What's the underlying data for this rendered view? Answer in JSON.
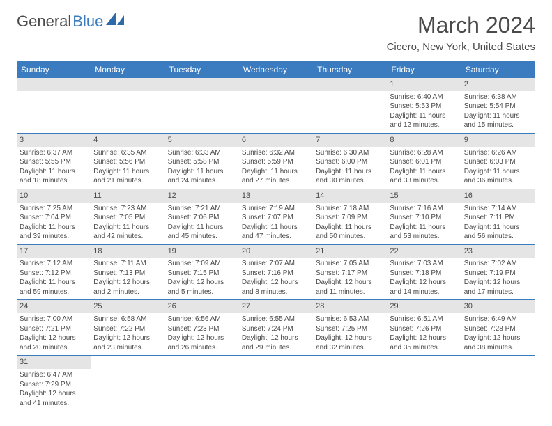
{
  "logo": {
    "text1": "General",
    "text2": "Blue",
    "iconColor": "#2f6aa8"
  },
  "title": "March 2024",
  "location": "Cicero, New York, United States",
  "headerBg": "#3b7bbf",
  "headerText": "#ffffff",
  "dayBarBg": "#e5e5e5",
  "daysOfWeek": [
    "Sunday",
    "Monday",
    "Tuesday",
    "Wednesday",
    "Thursday",
    "Friday",
    "Saturday"
  ],
  "weeks": [
    [
      {
        "n": "",
        "lines": []
      },
      {
        "n": "",
        "lines": []
      },
      {
        "n": "",
        "lines": []
      },
      {
        "n": "",
        "lines": []
      },
      {
        "n": "",
        "lines": []
      },
      {
        "n": "1",
        "lines": [
          "Sunrise: 6:40 AM",
          "Sunset: 5:53 PM",
          "Daylight: 11 hours and 12 minutes."
        ]
      },
      {
        "n": "2",
        "lines": [
          "Sunrise: 6:38 AM",
          "Sunset: 5:54 PM",
          "Daylight: 11 hours and 15 minutes."
        ]
      }
    ],
    [
      {
        "n": "3",
        "lines": [
          "Sunrise: 6:37 AM",
          "Sunset: 5:55 PM",
          "Daylight: 11 hours and 18 minutes."
        ]
      },
      {
        "n": "4",
        "lines": [
          "Sunrise: 6:35 AM",
          "Sunset: 5:56 PM",
          "Daylight: 11 hours and 21 minutes."
        ]
      },
      {
        "n": "5",
        "lines": [
          "Sunrise: 6:33 AM",
          "Sunset: 5:58 PM",
          "Daylight: 11 hours and 24 minutes."
        ]
      },
      {
        "n": "6",
        "lines": [
          "Sunrise: 6:32 AM",
          "Sunset: 5:59 PM",
          "Daylight: 11 hours and 27 minutes."
        ]
      },
      {
        "n": "7",
        "lines": [
          "Sunrise: 6:30 AM",
          "Sunset: 6:00 PM",
          "Daylight: 11 hours and 30 minutes."
        ]
      },
      {
        "n": "8",
        "lines": [
          "Sunrise: 6:28 AM",
          "Sunset: 6:01 PM",
          "Daylight: 11 hours and 33 minutes."
        ]
      },
      {
        "n": "9",
        "lines": [
          "Sunrise: 6:26 AM",
          "Sunset: 6:03 PM",
          "Daylight: 11 hours and 36 minutes."
        ]
      }
    ],
    [
      {
        "n": "10",
        "lines": [
          "Sunrise: 7:25 AM",
          "Sunset: 7:04 PM",
          "Daylight: 11 hours and 39 minutes."
        ]
      },
      {
        "n": "11",
        "lines": [
          "Sunrise: 7:23 AM",
          "Sunset: 7:05 PM",
          "Daylight: 11 hours and 42 minutes."
        ]
      },
      {
        "n": "12",
        "lines": [
          "Sunrise: 7:21 AM",
          "Sunset: 7:06 PM",
          "Daylight: 11 hours and 45 minutes."
        ]
      },
      {
        "n": "13",
        "lines": [
          "Sunrise: 7:19 AM",
          "Sunset: 7:07 PM",
          "Daylight: 11 hours and 47 minutes."
        ]
      },
      {
        "n": "14",
        "lines": [
          "Sunrise: 7:18 AM",
          "Sunset: 7:09 PM",
          "Daylight: 11 hours and 50 minutes."
        ]
      },
      {
        "n": "15",
        "lines": [
          "Sunrise: 7:16 AM",
          "Sunset: 7:10 PM",
          "Daylight: 11 hours and 53 minutes."
        ]
      },
      {
        "n": "16",
        "lines": [
          "Sunrise: 7:14 AM",
          "Sunset: 7:11 PM",
          "Daylight: 11 hours and 56 minutes."
        ]
      }
    ],
    [
      {
        "n": "17",
        "lines": [
          "Sunrise: 7:12 AM",
          "Sunset: 7:12 PM",
          "Daylight: 11 hours and 59 minutes."
        ]
      },
      {
        "n": "18",
        "lines": [
          "Sunrise: 7:11 AM",
          "Sunset: 7:13 PM",
          "Daylight: 12 hours and 2 minutes."
        ]
      },
      {
        "n": "19",
        "lines": [
          "Sunrise: 7:09 AM",
          "Sunset: 7:15 PM",
          "Daylight: 12 hours and 5 minutes."
        ]
      },
      {
        "n": "20",
        "lines": [
          "Sunrise: 7:07 AM",
          "Sunset: 7:16 PM",
          "Daylight: 12 hours and 8 minutes."
        ]
      },
      {
        "n": "21",
        "lines": [
          "Sunrise: 7:05 AM",
          "Sunset: 7:17 PM",
          "Daylight: 12 hours and 11 minutes."
        ]
      },
      {
        "n": "22",
        "lines": [
          "Sunrise: 7:03 AM",
          "Sunset: 7:18 PM",
          "Daylight: 12 hours and 14 minutes."
        ]
      },
      {
        "n": "23",
        "lines": [
          "Sunrise: 7:02 AM",
          "Sunset: 7:19 PM",
          "Daylight: 12 hours and 17 minutes."
        ]
      }
    ],
    [
      {
        "n": "24",
        "lines": [
          "Sunrise: 7:00 AM",
          "Sunset: 7:21 PM",
          "Daylight: 12 hours and 20 minutes."
        ]
      },
      {
        "n": "25",
        "lines": [
          "Sunrise: 6:58 AM",
          "Sunset: 7:22 PM",
          "Daylight: 12 hours and 23 minutes."
        ]
      },
      {
        "n": "26",
        "lines": [
          "Sunrise: 6:56 AM",
          "Sunset: 7:23 PM",
          "Daylight: 12 hours and 26 minutes."
        ]
      },
      {
        "n": "27",
        "lines": [
          "Sunrise: 6:55 AM",
          "Sunset: 7:24 PM",
          "Daylight: 12 hours and 29 minutes."
        ]
      },
      {
        "n": "28",
        "lines": [
          "Sunrise: 6:53 AM",
          "Sunset: 7:25 PM",
          "Daylight: 12 hours and 32 minutes."
        ]
      },
      {
        "n": "29",
        "lines": [
          "Sunrise: 6:51 AM",
          "Sunset: 7:26 PM",
          "Daylight: 12 hours and 35 minutes."
        ]
      },
      {
        "n": "30",
        "lines": [
          "Sunrise: 6:49 AM",
          "Sunset: 7:28 PM",
          "Daylight: 12 hours and 38 minutes."
        ]
      }
    ],
    [
      {
        "n": "31",
        "lines": [
          "Sunrise: 6:47 AM",
          "Sunset: 7:29 PM",
          "Daylight: 12 hours and 41 minutes."
        ]
      },
      {
        "n": "",
        "lines": []
      },
      {
        "n": "",
        "lines": []
      },
      {
        "n": "",
        "lines": []
      },
      {
        "n": "",
        "lines": []
      },
      {
        "n": "",
        "lines": []
      },
      {
        "n": "",
        "lines": []
      }
    ]
  ]
}
